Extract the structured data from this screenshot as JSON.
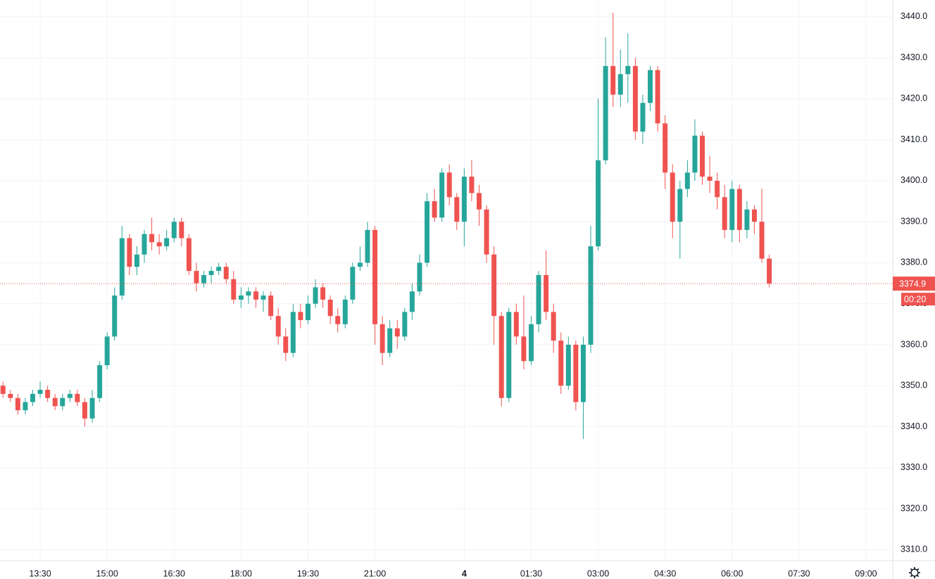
{
  "chart_data": {
    "type": "candlestick",
    "x": [
      "12:40",
      "12:50",
      "13:00",
      "13:10",
      "13:20",
      "13:30",
      "13:40",
      "13:50",
      "14:00",
      "14:10",
      "14:20",
      "14:30",
      "14:40",
      "14:50",
      "15:00",
      "15:10",
      "15:20",
      "15:30",
      "15:40",
      "15:50",
      "16:00",
      "16:10",
      "16:20",
      "16:30",
      "16:40",
      "16:50",
      "17:00",
      "17:10",
      "17:20",
      "17:30",
      "17:40",
      "17:50",
      "18:00",
      "18:10",
      "18:20",
      "18:30",
      "18:40",
      "18:50",
      "19:00",
      "19:10",
      "19:20",
      "19:30",
      "19:40",
      "19:50",
      "20:00",
      "20:10",
      "20:20",
      "20:30",
      "20:40",
      "20:50",
      "21:00",
      "21:10",
      "21:20",
      "21:30",
      "21:40",
      "21:50",
      "23:00",
      "23:10",
      "23:20",
      "23:30",
      "23:40",
      "23:50",
      "00:00",
      "00:10",
      "00:20",
      "00:30",
      "00:40",
      "00:50",
      "01:00",
      "01:10",
      "01:20",
      "01:30",
      "01:40",
      "01:50",
      "02:00",
      "02:10",
      "02:20",
      "02:30",
      "02:40",
      "02:50",
      "03:00",
      "03:10",
      "03:20",
      "03:30",
      "03:40",
      "03:50",
      "04:00",
      "04:10",
      "04:20",
      "04:30",
      "04:40",
      "04:50",
      "05:00",
      "05:10",
      "05:20",
      "05:30",
      "05:40",
      "05:50",
      "06:00",
      "06:10",
      "06:20",
      "06:30",
      "06:40",
      "06:50"
    ],
    "open": [
      3350,
      3348,
      3347,
      3344,
      3346,
      3348,
      3349,
      3347,
      3345,
      3347,
      3348,
      3346,
      3342,
      3347,
      3355,
      3362,
      3372,
      3386,
      3379,
      3382,
      3387,
      3385,
      3384,
      3386,
      3390,
      3386,
      3378,
      3375,
      3377,
      3378,
      3379,
      3376,
      3371,
      3372,
      3373,
      3371,
      3372,
      3367,
      3362,
      3358,
      3368,
      3366,
      3370,
      3374,
      3371,
      3367,
      3365,
      3371,
      3379,
      3380,
      3388,
      3365,
      3358,
      3364,
      3362,
      3368,
      3373,
      3380,
      3395,
      3391,
      3402,
      3396,
      3390,
      3401,
      3397,
      3393,
      3382,
      3367,
      3347,
      3368,
      3362,
      3356,
      3365,
      3377,
      3368,
      3361,
      3350,
      3360,
      3346,
      3360,
      3384,
      3405,
      3428,
      3421,
      3426,
      3428,
      3412,
      3419,
      3427,
      3414,
      3402,
      3390,
      3398,
      3402,
      3411,
      3401,
      3400,
      3396,
      3388,
      3398,
      3388,
      3393,
      3390,
      3381
    ],
    "high": [
      3351,
      3349,
      3348,
      3347,
      3349,
      3351,
      3350,
      3348,
      3348,
      3349,
      3349,
      3347,
      3349,
      3356,
      3363,
      3374,
      3389,
      3387,
      3384,
      3388,
      3391,
      3387,
      3388,
      3391,
      3391,
      3387,
      3380,
      3378,
      3379,
      3380,
      3380,
      3378,
      3374,
      3374,
      3374,
      3373,
      3373,
      3369,
      3364,
      3370,
      3370,
      3372,
      3376,
      3375,
      3372,
      3369,
      3372,
      3380,
      3384,
      3390,
      3389,
      3367,
      3366,
      3366,
      3369,
      3375,
      3382,
      3397,
      3398,
      3403,
      3404,
      3397,
      3403,
      3405,
      3399,
      3394,
      3384,
      3368,
      3369,
      3370,
      3372,
      3367,
      3378,
      3383,
      3370,
      3363,
      3362,
      3361,
      3362,
      3389,
      3420,
      3435,
      3441,
      3432,
      3436,
      3430,
      3421,
      3428,
      3428,
      3416,
      3404,
      3400,
      3405,
      3415,
      3412,
      3406,
      3402,
      3399,
      3400,
      3399,
      3395,
      3394,
      3398,
      3382
    ],
    "low": [
      3347,
      3346,
      3343,
      3343,
      3345,
      3347,
      3346,
      3344,
      3344,
      3346,
      3345,
      3340,
      3341,
      3346,
      3354,
      3361,
      3371,
      3377,
      3377,
      3380,
      3383,
      3382,
      3383,
      3385,
      3384,
      3377,
      3373,
      3374,
      3375,
      3377,
      3375,
      3370,
      3369,
      3370,
      3369,
      3368,
      3366,
      3360,
      3356,
      3357,
      3364,
      3365,
      3369,
      3369,
      3365,
      3363,
      3364,
      3370,
      3378,
      3379,
      3360,
      3355,
      3357,
      3359,
      3361,
      3366,
      3372,
      3379,
      3390,
      3390,
      3394,
      3388,
      3384,
      3395,
      3389,
      3380,
      3360,
      3345,
      3346,
      3360,
      3354,
      3355,
      3363,
      3366,
      3358,
      3348,
      3349,
      3344,
      3337,
      3358,
      3383,
      3404,
      3418,
      3418,
      3419,
      3410,
      3409,
      3417,
      3412,
      3398,
      3386,
      3381,
      3396,
      3400,
      3399,
      3397,
      3393,
      3386,
      3385,
      3385,
      3386,
      3387,
      3380,
      3374
    ],
    "close": [
      3348,
      3347,
      3344,
      3346,
      3348,
      3349,
      3347,
      3345,
      3347,
      3348,
      3346,
      3342,
      3347,
      3355,
      3362,
      3372,
      3386,
      3379,
      3382,
      3387,
      3385,
      3384,
      3386,
      3390,
      3386,
      3378,
      3375,
      3377,
      3378,
      3379,
      3376,
      3371,
      3372,
      3373,
      3371,
      3372,
      3367,
      3362,
      3358,
      3368,
      3366,
      3370,
      3374,
      3371,
      3367,
      3365,
      3371,
      3379,
      3380,
      3388,
      3365,
      3358,
      3364,
      3362,
      3368,
      3373,
      3380,
      3395,
      3391,
      3402,
      3396,
      3390,
      3401,
      3397,
      3393,
      3382,
      3367,
      3347,
      3368,
      3362,
      3356,
      3365,
      3377,
      3368,
      3361,
      3350,
      3360,
      3346,
      3360,
      3384,
      3405,
      3428,
      3421,
      3426,
      3428,
      3412,
      3419,
      3427,
      3414,
      3402,
      3390,
      3398,
      3402,
      3411,
      3401,
      3400,
      3396,
      3388,
      3398,
      3388,
      3393,
      3390,
      3381,
      3374.9
    ],
    "up_color": "#26a69a",
    "down_color": "#ef5350",
    "xlim": [
      "12:36",
      "09:36"
    ],
    "xticks": [
      "13:30",
      "15:00",
      "16:30",
      "18:00",
      "19:30",
      "21:00",
      {
        "value": "00:00",
        "label": "4"
      },
      "01:30",
      "03:00",
      "04:30",
      "06:00",
      "07:30",
      "09:00"
    ],
    "ylim": [
      3307.3,
      3444.1
    ],
    "yticks": [
      {
        "value": 3310,
        "label": "3310.0"
      },
      {
        "value": 3320,
        "label": "3320.0"
      },
      {
        "value": 3330,
        "label": "3330.0"
      },
      {
        "value": 3340,
        "label": "3340.0"
      },
      {
        "value": 3350,
        "label": "3350.0"
      },
      {
        "value": 3360,
        "label": "3360.0"
      },
      {
        "value": 3370,
        "label": "3370.0"
      },
      {
        "value": 3380,
        "label": "3380.0"
      },
      {
        "value": 3390,
        "label": "3390.0"
      },
      {
        "value": 3400,
        "label": "3400.0"
      },
      {
        "value": 3410,
        "label": "3410.0"
      },
      {
        "value": 3420,
        "label": "3420.0"
      },
      {
        "value": 3430,
        "label": "3430.0"
      },
      {
        "value": 3440,
        "label": "3440.0"
      }
    ],
    "grid": true,
    "last_price": 3374.9,
    "countdown": "00:20"
  }
}
